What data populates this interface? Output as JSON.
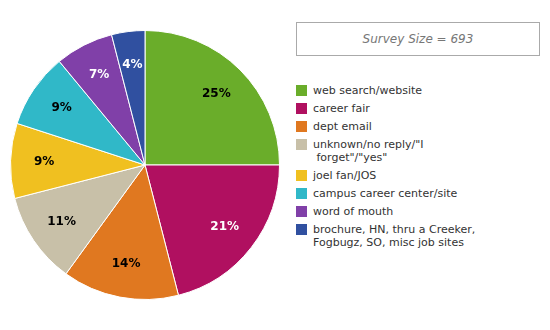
{
  "chart_data": {
    "type": "pie",
    "categories": [
      "web search/website",
      "career fair",
      "dept email",
      "unknown/no reply/\"I\n forget\"/\"yes\"",
      "joel fan/JOS",
      "campus career center/site",
      "word of mouth",
      "brochure, HN, thru a Creeker,\nFogbugz, SO, misc job sites"
    ],
    "values": [
      25,
      21,
      14,
      11,
      9,
      9,
      7,
      4
    ],
    "value_labels": [
      "25%",
      "21%",
      "14%",
      "11%",
      "9%",
      "9%",
      "7%",
      "4%"
    ],
    "colors": [
      "#6aad2a",
      "#b01060",
      "#e07820",
      "#c8c0a8",
      "#f0c020",
      "#30b8c8",
      "#8040a8",
      "#3050a0"
    ],
    "data_labels": true,
    "legend": "right",
    "annotations": [
      "Survey Size = 693"
    ]
  }
}
